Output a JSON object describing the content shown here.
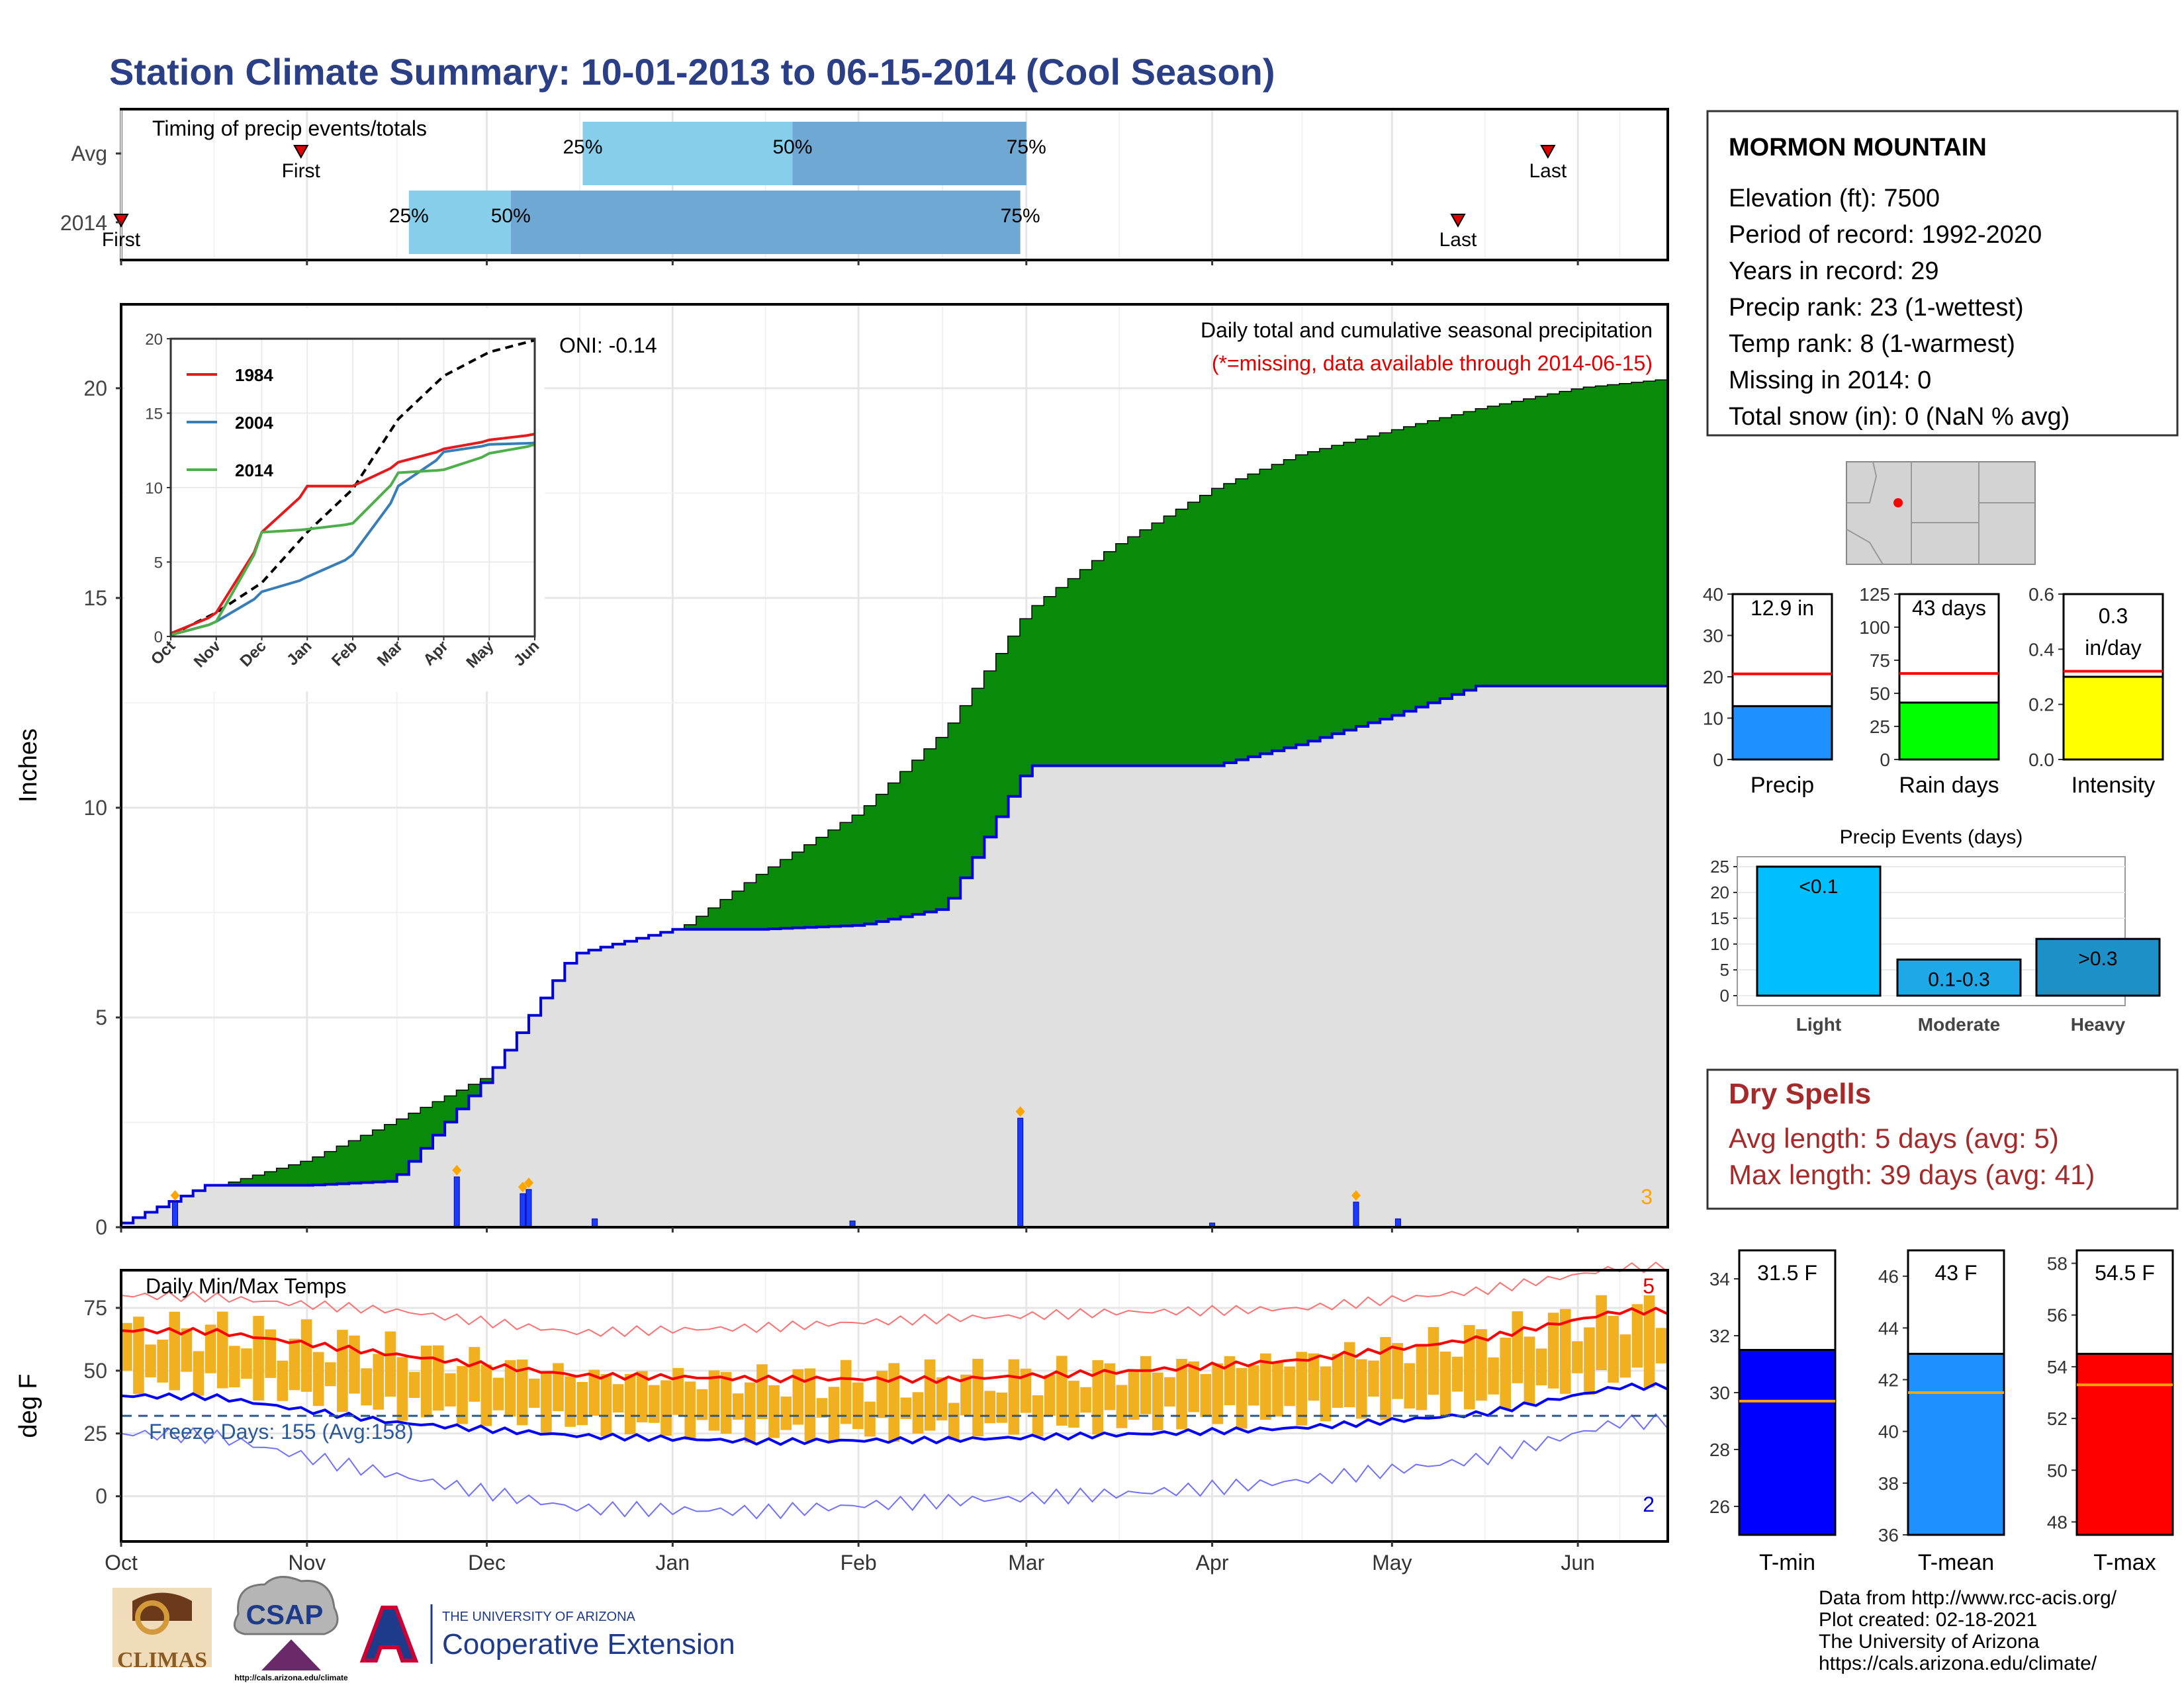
{
  "title": "Station Climate Summary: 10-01-2013 to 06-15-2014 (Cool Season)",
  "timing": {
    "label": "Timing of precip events/totals",
    "rows": [
      {
        "name": "Avg",
        "first": "First",
        "last": "Last",
        "p25": "25%",
        "p50": "50%",
        "p75": "75%"
      },
      {
        "name": "2014",
        "first": "First",
        "last": "Last",
        "p25": "25%",
        "p50": "50%",
        "p75": "75%"
      }
    ]
  },
  "station": {
    "name": "MORMON MOUNTAIN",
    "lines": [
      "Elevation (ft): 7500",
      "Period of record: 1992-2020",
      "Years in record: 29",
      "Precip rank: 23 (1-wettest)",
      "Temp rank: 8 (1-warmest)",
      "Missing in 2014: 0",
      "Total snow (in): 0 (NaN % avg)"
    ]
  },
  "precip_panel": {
    "ylabel": "Inches",
    "annotation_title": "Daily total and cumulative seasonal precipitation",
    "annotation_missing": "(*=missing, data available through 2014-06-15)",
    "oni": "ONI: -0.14",
    "corner_count": "3",
    "yticks": [
      "0",
      "5",
      "10",
      "15",
      "20"
    ]
  },
  "inset": {
    "legend": [
      "1984",
      "2004",
      "2014"
    ],
    "yticks": [
      "0",
      "5",
      "10",
      "15",
      "20"
    ],
    "xticks": [
      "Oct",
      "Nov",
      "Dec",
      "Jan",
      "Feb",
      "Mar",
      "Apr",
      "May",
      "Jun"
    ]
  },
  "temp_panel": {
    "ylabel": "deg F",
    "label": "Daily Min/Max Temps",
    "freeze": "Freeze Days: 155 (Avg:158)",
    "count_hi": "5",
    "count_lo": "2",
    "yticks": [
      "0",
      "25",
      "50",
      "75"
    ]
  },
  "months": [
    "Oct",
    "Nov",
    "Dec",
    "Jan",
    "Feb",
    "Mar",
    "Apr",
    "May",
    "Jun"
  ],
  "summary_bars": [
    {
      "label": "Precip",
      "value_text": "12.9 in",
      "yticks": [
        "0",
        "10",
        "20",
        "30",
        "40"
      ]
    },
    {
      "label": "Rain days",
      "value_text": "43 days",
      "yticks": [
        "0",
        "25",
        "50",
        "75",
        "100",
        "125"
      ]
    },
    {
      "label": "Intensity",
      "value_text": "0.3 in/day",
      "yticks": [
        "0.0",
        "0.2",
        "0.4",
        "0.6"
      ]
    }
  ],
  "events": {
    "title": "Precip Events (days)",
    "categories": [
      "Light",
      "Moderate",
      "Heavy"
    ],
    "value_labels": [
      "<0.1",
      "0.1-0.3",
      ">0.3"
    ],
    "yticks": [
      "0",
      "5",
      "10",
      "15",
      "20",
      "25"
    ]
  },
  "dry_spells": {
    "title": "Dry Spells",
    "line1": "Avg length: 5 days (avg: 5)",
    "line2": "Max length: 39 days (avg: 41)"
  },
  "temp_bars": [
    {
      "label": "T-min",
      "value_text": "31.5 F",
      "yticks": [
        "26",
        "28",
        "30",
        "32",
        "34"
      ]
    },
    {
      "label": "T-mean",
      "value_text": "43 F",
      "yticks": [
        "36",
        "38",
        "40",
        "42",
        "44",
        "46"
      ]
    },
    {
      "label": "T-max",
      "value_text": "54.5 F",
      "yticks": [
        "48",
        "50",
        "52",
        "54",
        "56",
        "58"
      ]
    }
  ],
  "footer": [
    "Data from http://www.rcc-acis.org/",
    "Plot created: 02-18-2021",
    "The University of Arizona",
    "https://cals.arizona.edu/climate/"
  ],
  "logos": {
    "climas": "CLIMAS",
    "csap": "CSAP",
    "csap_url": "http://cals.arizona.edu/climate",
    "ua_top": "THE UNIVERSITY OF ARIZONA",
    "ua_bottom": "Cooperative Extension"
  },
  "colors": {
    "title": "#2a3f85",
    "cum_avg": "#8b5a00",
    "surplus": "#0a8a0a",
    "daily": "#0000ff",
    "temp_bar": "#f0b020",
    "tmax": "#ff0000",
    "tmin": "#0000ff",
    "dry": "#a52a2a"
  },
  "chart_data": [
    {
      "type": "bar",
      "title": "Timing of precip events/totals",
      "categories": [
        "Avg",
        "2014"
      ],
      "series": [
        {
          "name": "Avg",
          "values": {
            "first": "2013-10-31",
            "p25": "2013-12-17",
            "p50": "2014-01-21",
            "p75": "2014-03-01",
            "last": "2014-05-27"
          }
        },
        {
          "name": "2014",
          "values": {
            "first": "2013-10-01",
            "p25": "2013-11-18",
            "p50": "2013-12-05",
            "p75": "2014-02-28",
            "last": "2014-05-12"
          }
        }
      ]
    },
    {
      "type": "area",
      "title": "Daily total and cumulative seasonal precipitation",
      "xlabel": "",
      "ylabel": "Inches",
      "ylim": [
        0,
        22
      ],
      "x": [
        "2013-10-01",
        "2013-10-15",
        "2013-11-01",
        "2013-11-15",
        "2013-12-01",
        "2013-12-15",
        "2014-01-01",
        "2014-01-15",
        "2014-02-01",
        "2014-02-15",
        "2014-03-01",
        "2014-03-15",
        "2014-04-01",
        "2014-04-15",
        "2014-05-01",
        "2014-05-15",
        "2014-06-01",
        "2014-06-15"
      ],
      "series": [
        {
          "name": "Average cumulative",
          "values": [
            0.1,
            0.9,
            1.6,
            2.5,
            3.6,
            5.6,
            7.0,
            8.4,
            9.9,
            11.8,
            14.7,
            16.2,
            17.6,
            18.4,
            19.0,
            19.5,
            20.0,
            20.2
          ]
        },
        {
          "name": "2014 cumulative",
          "values": [
            0.1,
            1.0,
            1.0,
            1.1,
            3.6,
            6.5,
            7.1,
            7.1,
            7.2,
            7.6,
            11.0,
            11.0,
            11.0,
            11.5,
            12.2,
            12.9,
            12.9,
            12.9
          ]
        }
      ],
      "daily_events": [
        {
          "date": "2013-10-10",
          "value": 0.6
        },
        {
          "date": "2013-11-26",
          "value": 1.2
        },
        {
          "date": "2013-12-07",
          "value": 0.8
        },
        {
          "date": "2013-12-08",
          "value": 0.9
        },
        {
          "date": "2013-12-19",
          "value": 0.2
        },
        {
          "date": "2014-01-31",
          "value": 0.15
        },
        {
          "date": "2014-02-28",
          "value": 2.6
        },
        {
          "date": "2014-04-01",
          "value": 0.1
        },
        {
          "date": "2014-04-25",
          "value": 0.6
        },
        {
          "date": "2014-05-02",
          "value": 0.2
        }
      ],
      "oni": -0.14
    },
    {
      "type": "line",
      "title": "",
      "xlabel": "",
      "ylabel": "",
      "ylim": [
        0,
        20
      ],
      "categories": [
        "Oct",
        "Nov",
        "Dec",
        "Jan",
        "Feb",
        "Mar",
        "Apr",
        "May",
        "Jun"
      ],
      "series": [
        {
          "name": "Average",
          "values": [
            0.1,
            1.6,
            3.6,
            7.0,
            9.9,
            14.6,
            17.5,
            19.1,
            19.9
          ]
        },
        {
          "name": "1984",
          "values": [
            0.2,
            1.6,
            7.0,
            10.1,
            10.1,
            11.7,
            12.6,
            13.2,
            13.6
          ]
        },
        {
          "name": "2004",
          "values": [
            0.1,
            1.0,
            3.0,
            4.0,
            5.5,
            10.1,
            12.4,
            12.9,
            13.0
          ]
        },
        {
          "name": "2014",
          "values": [
            0.1,
            1.0,
            7.0,
            7.2,
            7.6,
            11.0,
            11.2,
            12.3,
            12.9
          ]
        }
      ]
    },
    {
      "type": "line",
      "title": "Daily Min/Max Temps",
      "xlabel": "",
      "ylabel": "deg F",
      "ylim": [
        -18,
        90
      ],
      "categories": [
        "Oct",
        "Nov",
        "Dec",
        "Jan",
        "Feb",
        "Mar",
        "Apr",
        "May",
        "Jun"
      ],
      "series": [
        {
          "name": "Avg max",
          "values": [
            66,
            57,
            48,
            46,
            46,
            50,
            55,
            63,
            73
          ]
        },
        {
          "name": "Avg min",
          "values": [
            40,
            30,
            24,
            21,
            22,
            25,
            28,
            33,
            43
          ]
        },
        {
          "name": "Record max",
          "values": [
            80,
            75,
            65,
            66,
            70,
            74,
            76,
            82,
            90
          ]
        },
        {
          "name": "Record min",
          "values": [
            25,
            10,
            -5,
            -8,
            -3,
            2,
            8,
            15,
            28
          ]
        }
      ],
      "freeze_days": 155,
      "freeze_days_avg": 158,
      "record_highs": 5,
      "record_lows": 2
    },
    {
      "type": "bar",
      "categories": [
        "Precip",
        "Rain days",
        "Intensity"
      ],
      "series": [
        {
          "name": "2014",
          "values": [
            12.9,
            43,
            0.3
          ]
        },
        {
          "name": "Average",
          "values": [
            20.7,
            65,
            0.32
          ]
        }
      ],
      "ylim": [
        [
          0,
          40
        ],
        [
          0,
          125
        ],
        [
          0,
          0.6
        ]
      ]
    },
    {
      "type": "bar",
      "title": "Precip Events (days)",
      "categories": [
        "Light",
        "Moderate",
        "Heavy"
      ],
      "values": [
        25,
        7,
        11
      ],
      "ylim": [
        0,
        25
      ]
    },
    {
      "type": "bar",
      "categories": [
        "T-min",
        "T-mean",
        "T-max"
      ],
      "series": [
        {
          "name": "2014",
          "values": [
            31.5,
            43,
            54.5
          ]
        },
        {
          "name": "Average",
          "values": [
            29.7,
            41.5,
            53.3
          ]
        }
      ],
      "ylim": [
        [
          25,
          35
        ],
        [
          36,
          47
        ],
        [
          47.5,
          58.5
        ]
      ]
    }
  ]
}
